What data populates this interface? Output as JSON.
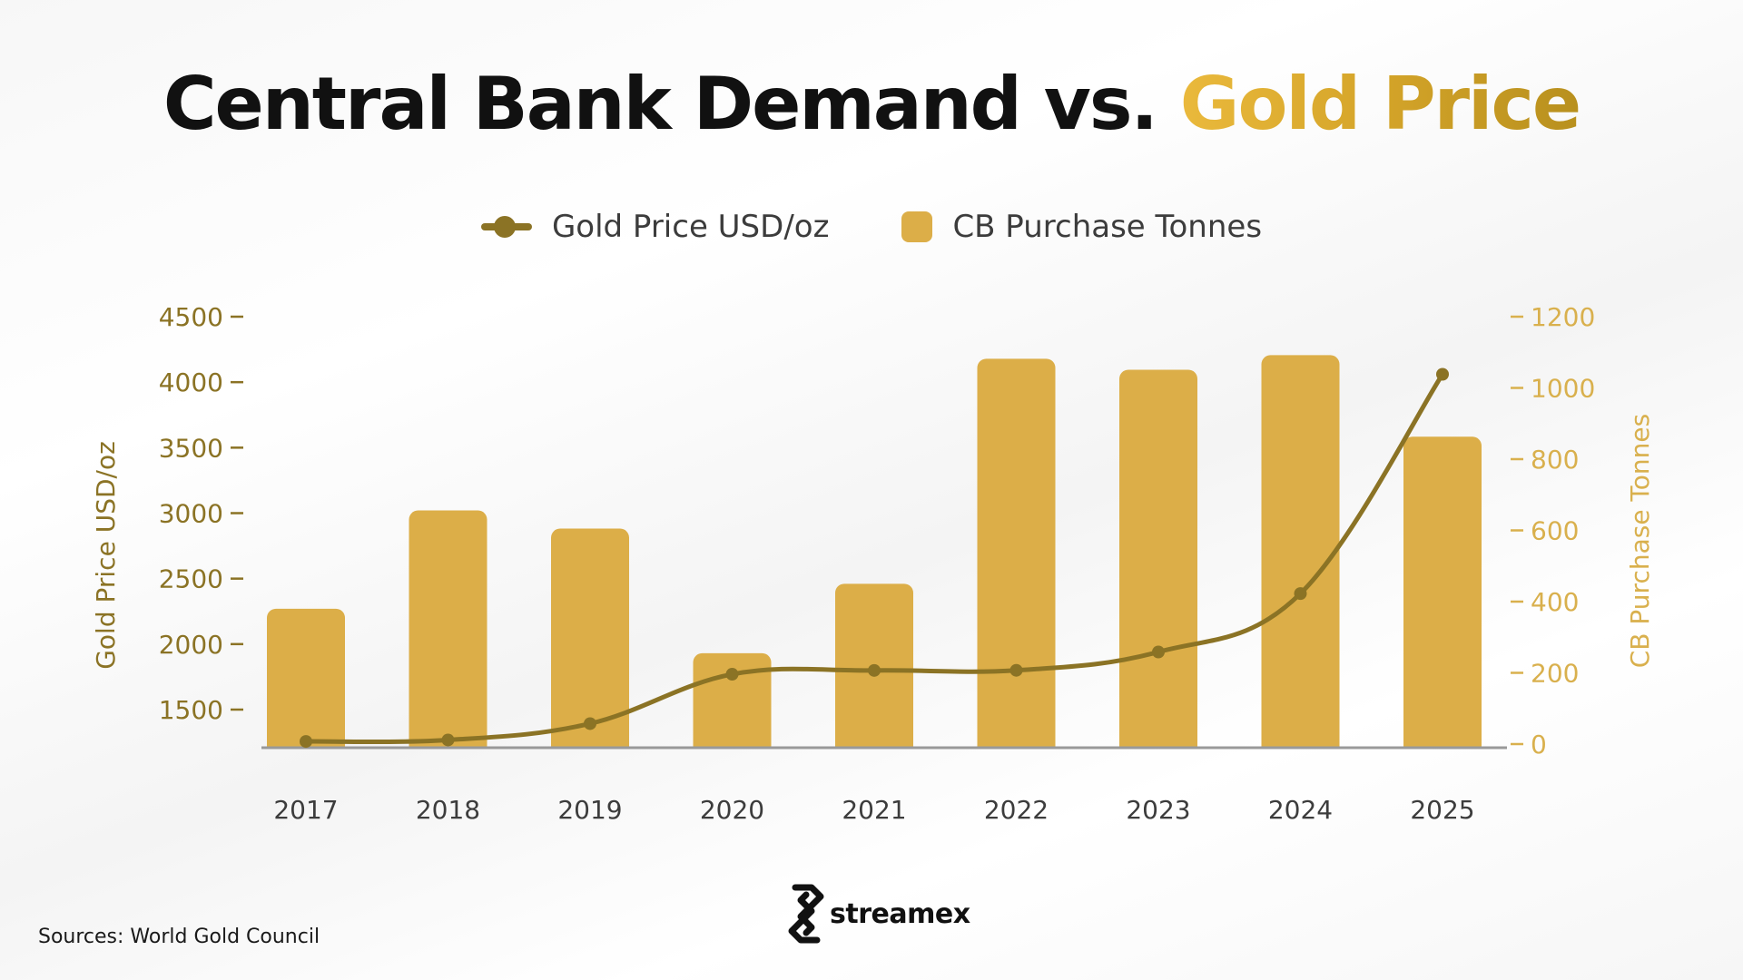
{
  "title": {
    "main": "Central Bank Demand vs.",
    "highlight": "Gold Price"
  },
  "source": "Sources: World Gold Council",
  "logo": {
    "text": "streamex",
    "icon": "streamex-logo-icon"
  },
  "colors": {
    "line": "#8b7325",
    "bars": "#dcae48",
    "left_axis": "#8b7325",
    "right_axis": "#d9b04d",
    "baseline": "#999999"
  },
  "chart_data": {
    "type": "bar",
    "categories": [
      "2017",
      "2018",
      "2019",
      "2020",
      "2021",
      "2022",
      "2023",
      "2024",
      "2025"
    ],
    "series": [
      {
        "name": "Gold Price USD/oz",
        "type": "line",
        "axis": "left",
        "values": [
          1257,
          1268,
          1393,
          1770,
          1799,
          1800,
          1940,
          2386,
          4060
        ]
      },
      {
        "name": "CB Purchase Tonnes",
        "type": "bar",
        "axis": "right",
        "values": [
          380,
          656,
          605,
          255,
          450,
          1082,
          1051,
          1092,
          863
        ]
      }
    ],
    "y_left": {
      "label": "Gold Price USD/oz",
      "ticks": [
        1500,
        2000,
        2500,
        3000,
        3500,
        4000,
        4500
      ]
    },
    "y_right": {
      "label": "CB Purchase Tonnes",
      "ticks": [
        0,
        200,
        400,
        600,
        800,
        1000,
        1200
      ],
      "range": [
        0,
        1200
      ]
    },
    "legend_position": "top-center",
    "grid": false
  }
}
